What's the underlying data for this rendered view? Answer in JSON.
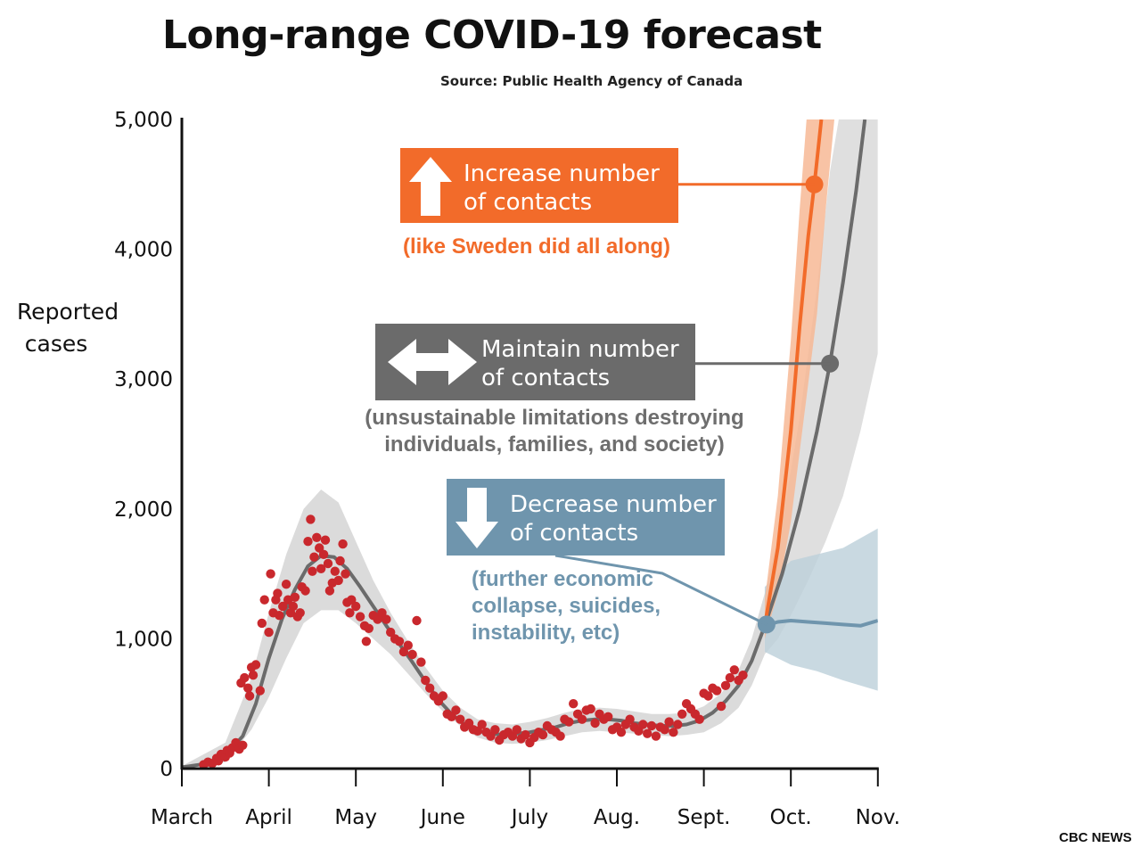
{
  "title": "Long-range COVID-19 forecast",
  "source": "Source: Public Health Agency of Canada",
  "credit": "CBC NEWS",
  "colors": {
    "observed": "#c9282d",
    "maintain": "#6b6b6b",
    "increase": "#f26b2a",
    "decrease": "#6f95ad",
    "band": "#d9d9d9",
    "increase_band": "#f7b895",
    "decrease_band": "#bccfda"
  },
  "chart_data": {
    "type": "line",
    "ylabel_lines": [
      "Reported",
      "cases"
    ],
    "ylim": [
      0,
      5000
    ],
    "yticks": [
      0,
      1000,
      2000,
      3000,
      4000,
      5000
    ],
    "ytick_labels": [
      "0",
      "1,000",
      "2,000",
      "3,000",
      "4,000",
      "5,000"
    ],
    "x_tick_labels": [
      "March",
      "April",
      "May",
      "June",
      "July",
      "Aug.",
      "Sept.",
      "Oct.",
      "Nov."
    ],
    "grid": false,
    "observed_points": [
      [
        0.25,
        30
      ],
      [
        0.3,
        50
      ],
      [
        0.35,
        40
      ],
      [
        0.4,
        80
      ],
      [
        0.42,
        60
      ],
      [
        0.45,
        110
      ],
      [
        0.5,
        90
      ],
      [
        0.52,
        140
      ],
      [
        0.55,
        120
      ],
      [
        0.58,
        160
      ],
      [
        0.62,
        200
      ],
      [
        0.66,
        150
      ],
      [
        0.7,
        180
      ],
      [
        0.68,
        660
      ],
      [
        0.72,
        700
      ],
      [
        0.76,
        620
      ],
      [
        0.78,
        560
      ],
      [
        0.8,
        780
      ],
      [
        0.82,
        720
      ],
      [
        0.85,
        800
      ],
      [
        0.9,
        600
      ],
      [
        0.92,
        1120
      ],
      [
        0.95,
        1300
      ],
      [
        1.0,
        1050
      ],
      [
        1.02,
        1500
      ],
      [
        1.05,
        1200
      ],
      [
        1.08,
        1300
      ],
      [
        1.1,
        1350
      ],
      [
        1.12,
        1180
      ],
      [
        1.16,
        1250
      ],
      [
        1.2,
        1420
      ],
      [
        1.22,
        1300
      ],
      [
        1.25,
        1200
      ],
      [
        1.28,
        1250
      ],
      [
        1.3,
        1320
      ],
      [
        1.33,
        1170
      ],
      [
        1.36,
        1200
      ],
      [
        1.38,
        1400
      ],
      [
        1.42,
        1370
      ],
      [
        1.45,
        1750
      ],
      [
        1.48,
        1920
      ],
      [
        1.5,
        1520
      ],
      [
        1.52,
        1630
      ],
      [
        1.55,
        1780
      ],
      [
        1.58,
        1700
      ],
      [
        1.6,
        1540
      ],
      [
        1.63,
        1650
      ],
      [
        1.65,
        1760
      ],
      [
        1.68,
        1580
      ],
      [
        1.7,
        1370
      ],
      [
        1.73,
        1430
      ],
      [
        1.76,
        1520
      ],
      [
        1.8,
        1450
      ],
      [
        1.82,
        1600
      ],
      [
        1.85,
        1730
      ],
      [
        1.88,
        1500
      ],
      [
        1.9,
        1280
      ],
      [
        1.93,
        1200
      ],
      [
        1.95,
        1300
      ],
      [
        2.0,
        1250
      ],
      [
        2.05,
        1170
      ],
      [
        2.1,
        1100
      ],
      [
        2.12,
        980
      ],
      [
        2.15,
        1080
      ],
      [
        2.2,
        1180
      ],
      [
        2.25,
        1150
      ],
      [
        2.3,
        1200
      ],
      [
        2.35,
        1150
      ],
      [
        2.4,
        1050
      ],
      [
        2.45,
        1000
      ],
      [
        2.5,
        980
      ],
      [
        2.55,
        900
      ],
      [
        2.6,
        950
      ],
      [
        2.65,
        880
      ],
      [
        2.7,
        1140
      ],
      [
        2.75,
        820
      ],
      [
        2.8,
        680
      ],
      [
        2.85,
        620
      ],
      [
        2.9,
        560
      ],
      [
        2.95,
        520
      ],
      [
        3.0,
        560
      ],
      [
        3.05,
        420
      ],
      [
        3.1,
        400
      ],
      [
        3.15,
        450
      ],
      [
        3.2,
        380
      ],
      [
        3.25,
        320
      ],
      [
        3.3,
        350
      ],
      [
        3.35,
        300
      ],
      [
        3.4,
        290
      ],
      [
        3.45,
        340
      ],
      [
        3.5,
        280
      ],
      [
        3.55,
        250
      ],
      [
        3.6,
        300
      ],
      [
        3.65,
        220
      ],
      [
        3.7,
        260
      ],
      [
        3.75,
        280
      ],
      [
        3.8,
        250
      ],
      [
        3.85,
        300
      ],
      [
        3.9,
        230
      ],
      [
        3.95,
        260
      ],
      [
        4.0,
        200
      ],
      [
        4.05,
        240
      ],
      [
        4.1,
        280
      ],
      [
        4.15,
        260
      ],
      [
        4.2,
        330
      ],
      [
        4.25,
        300
      ],
      [
        4.3,
        280
      ],
      [
        4.35,
        250
      ],
      [
        4.4,
        380
      ],
      [
        4.45,
        360
      ],
      [
        4.5,
        500
      ],
      [
        4.55,
        420
      ],
      [
        4.6,
        380
      ],
      [
        4.65,
        450
      ],
      [
        4.7,
        460
      ],
      [
        4.75,
        350
      ],
      [
        4.8,
        420
      ],
      [
        4.85,
        380
      ],
      [
        4.9,
        400
      ],
      [
        4.95,
        300
      ],
      [
        5.0,
        320
      ],
      [
        5.05,
        280
      ],
      [
        5.1,
        340
      ],
      [
        5.15,
        380
      ],
      [
        5.2,
        320
      ],
      [
        5.25,
        290
      ],
      [
        5.3,
        340
      ],
      [
        5.35,
        270
      ],
      [
        5.4,
        330
      ],
      [
        5.45,
        250
      ],
      [
        5.5,
        320
      ],
      [
        5.55,
        300
      ],
      [
        5.6,
        360
      ],
      [
        5.65,
        280
      ],
      [
        5.7,
        340
      ],
      [
        5.75,
        420
      ],
      [
        5.8,
        500
      ],
      [
        5.85,
        460
      ],
      [
        5.9,
        420
      ],
      [
        5.95,
        380
      ],
      [
        6.0,
        580
      ],
      [
        6.05,
        560
      ],
      [
        6.1,
        620
      ],
      [
        6.15,
        600
      ],
      [
        6.2,
        480
      ],
      [
        6.25,
        640
      ],
      [
        6.3,
        700
      ],
      [
        6.35,
        760
      ],
      [
        6.4,
        680
      ],
      [
        6.45,
        720
      ]
    ],
    "model_fit": [
      [
        0,
        10
      ],
      [
        0.3,
        40
      ],
      [
        0.5,
        100
      ],
      [
        0.7,
        250
      ],
      [
        0.85,
        500
      ],
      [
        1.0,
        850
      ],
      [
        1.15,
        1150
      ],
      [
        1.3,
        1380
      ],
      [
        1.45,
        1560
      ],
      [
        1.6,
        1640
      ],
      [
        1.75,
        1630
      ],
      [
        1.9,
        1540
      ],
      [
        2.05,
        1400
      ],
      [
        2.2,
        1250
      ],
      [
        2.35,
        1100
      ],
      [
        2.5,
        960
      ],
      [
        2.65,
        820
      ],
      [
        2.8,
        670
      ],
      [
        2.95,
        530
      ],
      [
        3.1,
        420
      ],
      [
        3.25,
        340
      ],
      [
        3.4,
        290
      ],
      [
        3.55,
        270
      ],
      [
        3.7,
        260
      ],
      [
        3.85,
        270
      ],
      [
        4.0,
        280
      ],
      [
        4.15,
        300
      ],
      [
        4.3,
        320
      ],
      [
        4.45,
        350
      ],
      [
        4.6,
        370
      ],
      [
        4.75,
        380
      ],
      [
        4.9,
        380
      ],
      [
        5.05,
        370
      ],
      [
        5.2,
        350
      ],
      [
        5.35,
        340
      ],
      [
        5.5,
        330
      ],
      [
        5.65,
        330
      ],
      [
        5.8,
        340
      ],
      [
        5.95,
        370
      ],
      [
        6.1,
        430
      ],
      [
        6.25,
        520
      ],
      [
        6.4,
        640
      ],
      [
        6.55,
        830
      ],
      [
        6.7,
        1100
      ]
    ],
    "fit_band": {
      "upper": [
        [
          0,
          20
        ],
        [
          0.5,
          200
        ],
        [
          0.8,
          700
        ],
        [
          1.0,
          1200
        ],
        [
          1.2,
          1650
        ],
        [
          1.4,
          2000
        ],
        [
          1.6,
          2150
        ],
        [
          1.8,
          2050
        ],
        [
          2.0,
          1750
        ],
        [
          2.2,
          1450
        ],
        [
          2.4,
          1200
        ],
        [
          2.6,
          980
        ],
        [
          2.8,
          780
        ],
        [
          3.0,
          600
        ],
        [
          3.2,
          470
        ],
        [
          3.4,
          380
        ],
        [
          3.6,
          350
        ],
        [
          3.8,
          340
        ],
        [
          4.0,
          360
        ],
        [
          4.2,
          390
        ],
        [
          4.4,
          430
        ],
        [
          4.6,
          460
        ],
        [
          4.8,
          470
        ],
        [
          5.0,
          460
        ],
        [
          5.2,
          440
        ],
        [
          5.4,
          420
        ],
        [
          5.6,
          420
        ],
        [
          5.8,
          430
        ],
        [
          6.0,
          480
        ],
        [
          6.2,
          580
        ],
        [
          6.4,
          760
        ],
        [
          6.55,
          1000
        ],
        [
          6.7,
          1350
        ]
      ],
      "lower": [
        [
          0,
          0
        ],
        [
          0.5,
          50
        ],
        [
          0.8,
          300
        ],
        [
          1.0,
          550
        ],
        [
          1.2,
          850
        ],
        [
          1.4,
          1120
        ],
        [
          1.6,
          1220
        ],
        [
          1.8,
          1220
        ],
        [
          2.0,
          1120
        ],
        [
          2.2,
          1000
        ],
        [
          2.4,
          880
        ],
        [
          2.6,
          730
        ],
        [
          2.8,
          580
        ],
        [
          3.0,
          440
        ],
        [
          3.2,
          330
        ],
        [
          3.4,
          240
        ],
        [
          3.6,
          200
        ],
        [
          3.8,
          190
        ],
        [
          4.0,
          200
        ],
        [
          4.2,
          220
        ],
        [
          4.4,
          250
        ],
        [
          4.6,
          280
        ],
        [
          4.8,
          290
        ],
        [
          5.0,
          280
        ],
        [
          5.2,
          270
        ],
        [
          5.4,
          260
        ],
        [
          5.6,
          250
        ],
        [
          5.8,
          260
        ],
        [
          6.0,
          280
        ],
        [
          6.2,
          350
        ],
        [
          6.4,
          470
        ],
        [
          6.55,
          640
        ],
        [
          6.7,
          880
        ]
      ]
    },
    "series": [
      {
        "name": "Maintain number of contacts",
        "key": "maintain",
        "values": [
          [
            6.7,
            1100
          ],
          [
            6.9,
            1500
          ],
          [
            7.1,
            2000
          ],
          [
            7.3,
            2600
          ],
          [
            7.45,
            3120
          ],
          [
            7.6,
            3750
          ],
          [
            7.75,
            4450
          ],
          [
            7.85,
            5000
          ]
        ],
        "band_upper": [
          [
            6.7,
            1350
          ],
          [
            6.9,
            1900
          ],
          [
            7.1,
            2700
          ],
          [
            7.3,
            3700
          ],
          [
            7.45,
            4600
          ],
          [
            7.55,
            5000
          ],
          [
            8.0,
            5000
          ]
        ],
        "band_lower": [
          [
            8.0,
            3200
          ],
          [
            7.8,
            2600
          ],
          [
            7.6,
            2100
          ],
          [
            7.4,
            1750
          ],
          [
            7.2,
            1450
          ],
          [
            7.0,
            1180
          ],
          [
            6.85,
            1000
          ],
          [
            6.7,
            880
          ]
        ],
        "marker": [
          7.45,
          3120
        ]
      },
      {
        "name": "Increase number of contacts",
        "key": "increase",
        "values": [
          [
            6.7,
            1100
          ],
          [
            6.85,
            1700
          ],
          [
            7.0,
            2600
          ],
          [
            7.1,
            3400
          ],
          [
            7.2,
            4100
          ],
          [
            7.27,
            4500
          ],
          [
            7.35,
            5000
          ]
        ],
        "band_upper": [
          [
            6.7,
            1300
          ],
          [
            6.85,
            2100
          ],
          [
            7.0,
            3300
          ],
          [
            7.1,
            4300
          ],
          [
            7.18,
            5000
          ],
          [
            7.5,
            5000
          ]
        ],
        "band_lower": [
          [
            7.5,
            5000
          ],
          [
            7.4,
            4300
          ],
          [
            7.3,
            3500
          ],
          [
            7.15,
            2700
          ],
          [
            7.0,
            1900
          ],
          [
            6.85,
            1350
          ],
          [
            6.7,
            1000
          ]
        ],
        "marker": [
          7.27,
          4500
        ]
      },
      {
        "name": "Decrease number of contacts",
        "key": "decrease",
        "values": [
          [
            6.7,
            1100
          ],
          [
            6.85,
            1130
          ],
          [
            7.0,
            1140
          ],
          [
            7.2,
            1130
          ],
          [
            7.4,
            1120
          ],
          [
            7.6,
            1110
          ],
          [
            7.8,
            1100
          ],
          [
            8.0,
            1140
          ]
        ],
        "band_upper": [
          [
            6.7,
            1400
          ],
          [
            7.0,
            1600
          ],
          [
            7.3,
            1650
          ],
          [
            7.6,
            1700
          ],
          [
            8.0,
            1850
          ]
        ],
        "band_lower": [
          [
            8.0,
            600
          ],
          [
            7.6,
            680
          ],
          [
            7.3,
            750
          ],
          [
            7.0,
            800
          ],
          [
            6.7,
            900
          ]
        ],
        "marker": [
          6.72,
          1110
        ]
      }
    ]
  },
  "annotations": {
    "increase": {
      "lines": [
        "Increase number",
        "of contacts"
      ],
      "note": [
        "(like Sweden did all along)"
      ],
      "icon": "up-arrow-icon"
    },
    "maintain": {
      "lines": [
        "Maintain number",
        "of contacts"
      ],
      "note": [
        "(unsustainable limitations destroying",
        "individuals, families, and society)"
      ],
      "icon": "left-right-arrow-icon"
    },
    "decrease": {
      "lines": [
        "Decrease number",
        "of contacts"
      ],
      "note": [
        "(further economic",
        "collapse, suicides,",
        "instability, etc)"
      ],
      "icon": "down-arrow-icon"
    }
  }
}
